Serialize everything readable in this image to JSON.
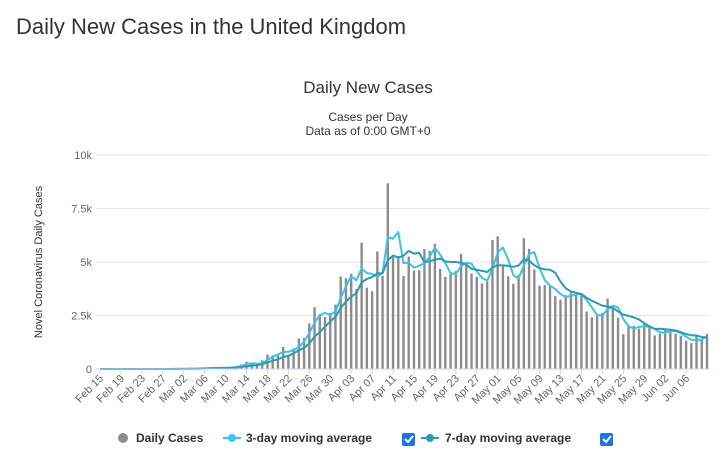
{
  "page_title": "Daily New Cases in the United Kingdom",
  "chart_data": {
    "type": "bar",
    "title": "Daily New Cases",
    "subtitle": [
      "Cases per Day",
      "Data as of 0:00 GMT+0"
    ],
    "y_label": "Novel Coronavirus Daily Cases",
    "categories": [
      "Feb 15",
      null,
      null,
      null,
      "Feb 19",
      null,
      null,
      null,
      "Feb 23",
      null,
      null,
      null,
      "Feb 27",
      null,
      null,
      null,
      "Mar 02",
      null,
      null,
      null,
      "Mar 06",
      null,
      null,
      null,
      "Mar 10",
      null,
      null,
      null,
      "Mar 14",
      null,
      null,
      null,
      "Mar 18",
      null,
      null,
      null,
      "Mar 22",
      null,
      null,
      null,
      "Mar 26",
      null,
      null,
      null,
      "Mar 30",
      null,
      null,
      null,
      "Apr 03",
      null,
      null,
      null,
      "Apr 07",
      null,
      null,
      null,
      "Apr 11",
      null,
      null,
      null,
      "Apr 15",
      null,
      null,
      null,
      "Apr 19",
      null,
      null,
      null,
      "Apr 23",
      null,
      null,
      null,
      "Apr 27",
      null,
      null,
      null,
      "May 01",
      null,
      null,
      null,
      "May 05",
      null,
      null,
      null,
      "May 09",
      null,
      null,
      null,
      "May 13",
      null,
      null,
      null,
      "May 17",
      null,
      null,
      null,
      "May 21",
      null,
      null,
      null,
      "May 25",
      null,
      null,
      null,
      "May 29",
      null,
      null,
      null,
      "Jun 02",
      null,
      null,
      null,
      "Jun 06",
      null,
      null,
      null,
      null
    ],
    "series": [
      {
        "name": "Daily Cases",
        "type": "bar",
        "color": "#8c8c8c",
        "values": [
          0,
          0,
          0,
          0,
          0,
          0,
          0,
          0,
          0,
          4,
          0,
          0,
          2,
          5,
          3,
          12,
          4,
          11,
          34,
          30,
          48,
          43,
          67,
          48,
          61,
          74,
          134,
          208,
          342,
          251,
          152,
          407,
          676,
          643,
          714,
          1035,
          665,
          967,
          1427,
          1452,
          2129,
          2885,
          2546,
          2433,
          2619,
          3009,
          4324,
          4244,
          4450,
          3735,
          5903,
          3802,
          3634,
          5491,
          4344,
          8681,
          5233,
          5288,
          4342,
          5252,
          4603,
          4617,
          5599,
          5525,
          5850,
          4676,
          4301,
          4451,
          4583,
          5386,
          4913,
          4463,
          4309,
          3996,
          4076,
          6032,
          6201,
          4806,
          4339,
          3985,
          4406,
          6111,
          5614,
          4649,
          3896,
          3923,
          3877,
          3403,
          3242,
          3446,
          3560,
          3451,
          3534,
          2684,
          2412,
          2472,
          2615,
          3287,
          2959,
          2405,
          1625,
          2004,
          2013,
          1887,
          2095,
          1936,
          1570,
          1653,
          1871,
          1805,
          1650,
          1557,
          1326,
          1205,
          1541,
          1387,
          1650
        ]
      },
      {
        "name": "3-day moving average",
        "type": "line",
        "color": "#3cc3ea",
        "values": [
          0,
          0,
          0,
          0,
          0,
          0,
          0,
          0,
          0,
          1,
          1,
          1,
          1,
          2,
          3,
          7,
          6,
          9,
          16,
          25,
          37,
          40,
          53,
          53,
          59,
          61,
          90,
          139,
          228,
          267,
          248,
          270,
          412,
          575,
          678,
          797,
          805,
          889,
          1020,
          1282,
          1669,
          2155,
          2520,
          2621,
          2533,
          2687,
          3317,
          3859,
          4339,
          4143,
          4696,
          4480,
          4446,
          4309,
          4490,
          6172,
          6086,
          6401,
          4954,
          4961,
          4732,
          4824,
          4940,
          5247,
          5658,
          5350,
          4942,
          4476,
          4445,
          4807,
          4961,
          4921,
          4562,
          4256,
          4127,
          4701,
          5436,
          5680,
          5115,
          4377,
          4243,
          4834,
          5377,
          5458,
          4720,
          4156,
          3899,
          3734,
          3507,
          3364,
          3416,
          3486,
          3515,
          3223,
          2877,
          2523,
          2500,
          2791,
          2954,
          2884,
          2330,
          2011,
          1881,
          1968,
          1998,
          1973,
          1867,
          1720,
          1698,
          1776,
          1775,
          1671,
          1511,
          1363,
          1357,
          1378,
          1526
        ]
      },
      {
        "name": "7-day moving average",
        "type": "line",
        "color": "#2b9bb2",
        "values": [
          0,
          0,
          0,
          0,
          0,
          0,
          0,
          0,
          0,
          1,
          1,
          1,
          1,
          2,
          2,
          4,
          4,
          5,
          10,
          14,
          20,
          26,
          34,
          40,
          47,
          53,
          68,
          91,
          133,
          160,
          175,
          224,
          310,
          383,
          455,
          554,
          613,
          730,
          875,
          986,
          1198,
          1509,
          1724,
          1977,
          2213,
          2439,
          2849,
          3151,
          3375,
          3545,
          4041,
          4210,
          4299,
          4466,
          4480,
          5084,
          5298,
          5210,
          5288,
          5519,
          5392,
          5431,
          4991,
          5032,
          5113,
          5160,
          5024,
          5003,
          4998,
          4967,
          4880,
          4682,
          4629,
          4586,
          4532,
          4739,
          4856,
          4840,
          4823,
          4776,
          4835,
          5126,
          5066,
          4844,
          4714,
          4655,
          4639,
          4496,
          4086,
          3777,
          3621,
          3557,
          3502,
          3331,
          3190,
          3080,
          2961,
          2922,
          2852,
          2691,
          2539,
          2481,
          2415,
          2311,
          2141,
          1995,
          1876,
          1880,
          1861,
          1831,
          1797,
          1720,
          1633,
          1581,
          1565,
          1496,
          1474
        ]
      }
    ],
    "ylim": [
      0,
      10000
    ],
    "yticks": [
      0,
      {
        "value": 2500,
        "label": "2.5k"
      },
      {
        "value": 5000,
        "label": "5k"
      },
      {
        "value": 7500,
        "label": "7.5k"
      },
      {
        "value": 10000,
        "label": "10k"
      }
    ],
    "grid": true
  }
}
